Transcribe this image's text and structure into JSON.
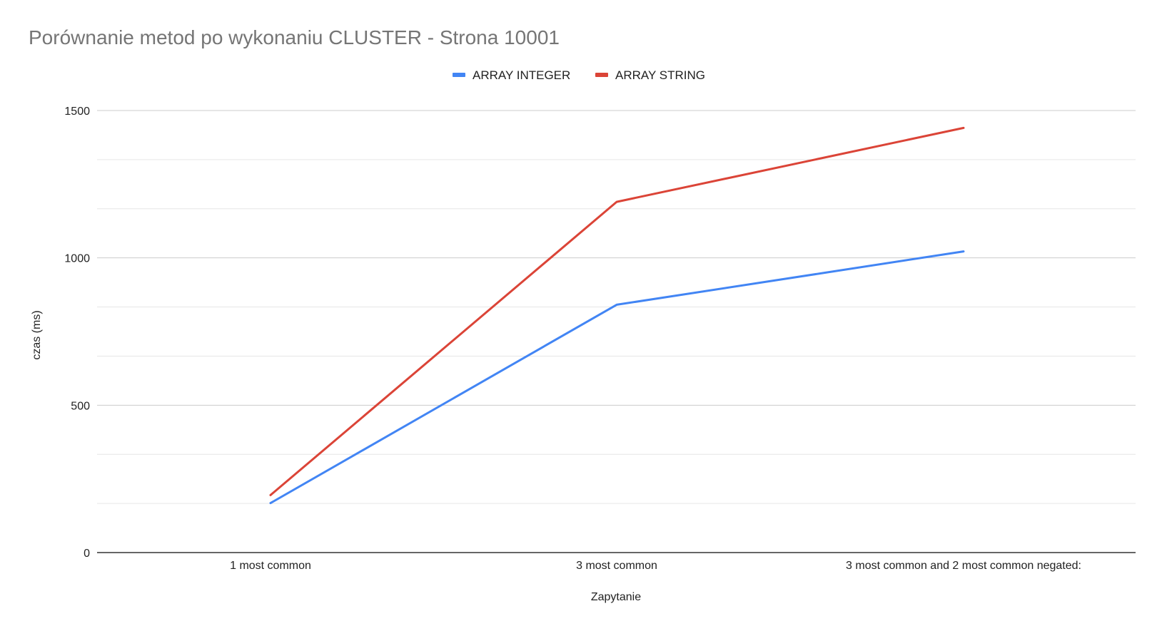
{
  "chart_data": {
    "type": "line",
    "title": "Porównanie metod po wykonaniu CLUSTER - Strona 10001",
    "xlabel": "Zapytanie",
    "ylabel": "czas (ms)",
    "categories": [
      "1 most common",
      "3 most common",
      "3 most common and 2 most common negated:"
    ],
    "ylim": [
      0,
      1500
    ],
    "yticks": [
      0,
      500,
      1000,
      1500
    ],
    "yticks_labels": [
      "0",
      "500",
      "1000",
      "1500"
    ],
    "minor_gridlines": [
      166.67,
      333.33,
      666.67,
      833.33,
      1166.67,
      1333.33
    ],
    "grid": true,
    "legend_position": "top-center",
    "series": [
      {
        "name": "ARRAY INTEGER",
        "color": "#4285f4",
        "values": [
          168,
          841,
          1022
        ]
      },
      {
        "name": "ARRAY STRING",
        "color": "#db4437",
        "values": [
          195,
          1190,
          1441
        ]
      }
    ]
  }
}
